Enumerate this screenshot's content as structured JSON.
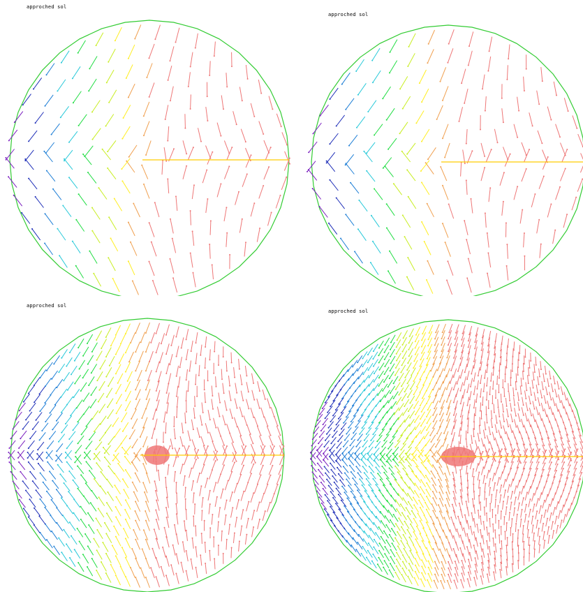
{
  "panels": [
    {
      "id": "p1",
      "title": "approched sol",
      "density": 1
    },
    {
      "id": "p2",
      "title": "approched sol",
      "density": 1
    },
    {
      "id": "p3",
      "title": "approched sol",
      "density": 2
    },
    {
      "id": "p4",
      "title": "approched sol",
      "density": 3
    }
  ],
  "colors": {
    "boundary": "#33cc33",
    "slit": "#ffcc00",
    "palette": [
      "#7a1fbf",
      "#1f2fb8",
      "#1f7fd6",
      "#29c9d9",
      "#22dd44",
      "#c8ee22",
      "#ffee22",
      "#f0a050",
      "#ee7777"
    ]
  }
}
